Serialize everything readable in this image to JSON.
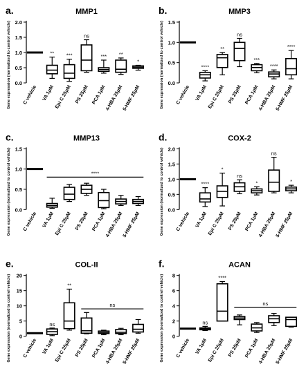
{
  "chart_data": [
    {
      "type": "box",
      "letter": "a.",
      "title": "MMP1",
      "ylabel": "Gene expression (normalized to control vehicle)",
      "ylim": [
        0,
        2.0
      ],
      "yticks": [
        0,
        0.5,
        1.0,
        1.5,
        2.0
      ],
      "ytick_labels": [
        "0.0",
        "0.5",
        "1.0",
        "1.5",
        "2.0"
      ],
      "categories": [
        "C vehicle",
        "VA 1μM",
        "Epi C 25μM",
        "PS 25μM",
        "PCA 1μM",
        "4-HBA 25μM",
        "5-HMF 25μM"
      ],
      "boxes": [
        {
          "min": 1.0,
          "q1": 1.0,
          "median": 1.0,
          "q3": 1.0,
          "max": 1.0
        },
        {
          "min": 0.15,
          "q1": 0.3,
          "median": 0.42,
          "q3": 0.58,
          "max": 0.85
        },
        {
          "min": 0.05,
          "q1": 0.15,
          "median": 0.32,
          "q3": 0.6,
          "max": 0.78
        },
        {
          "min": 0.35,
          "q1": 0.4,
          "median": 0.75,
          "q3": 1.25,
          "max": 1.42
        },
        {
          "min": 0.32,
          "q1": 0.38,
          "median": 0.44,
          "q3": 0.5,
          "max": 0.75
        },
        {
          "min": 0.28,
          "q1": 0.35,
          "median": 0.45,
          "q3": 0.75,
          "max": 0.82
        },
        {
          "min": 0.42,
          "q1": 0.48,
          "median": 0.52,
          "q3": 0.56,
          "max": 0.58
        }
      ],
      "annotations": [
        "",
        "**",
        "***",
        "ns",
        "***",
        "**",
        "*"
      ]
    },
    {
      "type": "box",
      "letter": "b.",
      "title": "MMP3",
      "ylabel": "Gene expression (normalized to control vehicle)",
      "ylim": [
        0,
        1.5
      ],
      "yticks": [
        0,
        0.5,
        1.0,
        1.5
      ],
      "ytick_labels": [
        "0.0",
        "0.5",
        "1.0",
        "1.5"
      ],
      "categories": [
        "C vehicle",
        "VA 1μM",
        "Epi C 25μM",
        "PS 25μM",
        "PCA 1μM",
        "4-HBA 25μM",
        "5-HMF 25μM"
      ],
      "boxes": [
        {
          "min": 1.0,
          "q1": 1.0,
          "median": 1.0,
          "q3": 1.0,
          "max": 1.0
        },
        {
          "min": 0.05,
          "q1": 0.12,
          "median": 0.2,
          "q3": 0.26,
          "max": 0.3
        },
        {
          "min": 0.2,
          "q1": 0.38,
          "median": 0.62,
          "q3": 0.7,
          "max": 0.75
        },
        {
          "min": 0.4,
          "q1": 0.55,
          "median": 0.85,
          "q3": 1.0,
          "max": 1.1
        },
        {
          "min": 0.25,
          "q1": 0.3,
          "median": 0.38,
          "q3": 0.45,
          "max": 0.48
        },
        {
          "min": 0.1,
          "q1": 0.15,
          "median": 0.22,
          "q3": 0.27,
          "max": 0.32
        },
        {
          "min": 0.1,
          "q1": 0.2,
          "median": 0.35,
          "q3": 0.6,
          "max": 0.8
        }
      ],
      "annotations": [
        "",
        "****",
        "**",
        "ns",
        "***",
        "****",
        "****"
      ]
    },
    {
      "type": "box",
      "letter": "c.",
      "title": "MMP13",
      "ylabel": "Gene expression (normalized to control vehicle)",
      "ylim": [
        0,
        1.5
      ],
      "yticks": [
        0,
        0.5,
        1.0,
        1.5
      ],
      "ytick_labels": [
        "0.0",
        "0.5",
        "1.0",
        "1.5"
      ],
      "categories": [
        "C vehicle",
        "VA 1μM",
        "Epi C 25μM",
        "PS 25μM",
        "PCA 1μM",
        "4-HBA 25μM",
        "5-HMF 25μM"
      ],
      "boxes": [
        {
          "min": 1.0,
          "q1": 1.0,
          "median": 1.0,
          "q3": 1.0,
          "max": 1.0
        },
        {
          "min": 0.03,
          "q1": 0.06,
          "median": 0.1,
          "q3": 0.15,
          "max": 0.28
        },
        {
          "min": 0.2,
          "q1": 0.25,
          "median": 0.38,
          "q3": 0.55,
          "max": 0.62
        },
        {
          "min": 0.35,
          "q1": 0.4,
          "median": 0.5,
          "q3": 0.6,
          "max": 0.65
        },
        {
          "min": 0.02,
          "q1": 0.05,
          "median": 0.22,
          "q3": 0.42,
          "max": 0.5
        },
        {
          "min": 0.1,
          "q1": 0.14,
          "median": 0.2,
          "q3": 0.26,
          "max": 0.35
        },
        {
          "min": 0.1,
          "q1": 0.15,
          "median": 0.2,
          "q3": 0.25,
          "max": 0.32
        }
      ],
      "annotations": [
        "",
        "",
        "",
        "",
        "",
        "",
        ""
      ],
      "bracket": {
        "from": 1,
        "to": 6,
        "y": 0.8,
        "label": "****"
      }
    },
    {
      "type": "box",
      "letter": "d.",
      "title": "COX-2",
      "ylabel": "Gene expression (normalized to control vehicle)",
      "ylim": [
        0,
        2.0
      ],
      "yticks": [
        0,
        0.5,
        1.0,
        1.5,
        2.0
      ],
      "ytick_labels": [
        "0.0",
        "0.5",
        "1.0",
        "1.5",
        "2.0"
      ],
      "categories": [
        "C vehicle",
        "VA 1μM",
        "Epi C 25μM",
        "PS 25μM",
        "PCA 1μM",
        "4-HBA 25μM",
        "5-HMF 25μM"
      ],
      "boxes": [
        {
          "min": 1.0,
          "q1": 1.0,
          "median": 1.0,
          "q3": 1.0,
          "max": 1.0
        },
        {
          "min": 0.1,
          "q1": 0.25,
          "median": 0.35,
          "q3": 0.55,
          "max": 0.72
        },
        {
          "min": 0.12,
          "q1": 0.4,
          "median": 0.6,
          "q3": 0.78,
          "max": 1.2
        },
        {
          "min": 0.52,
          "q1": 0.6,
          "median": 0.75,
          "q3": 0.88,
          "max": 0.98
        },
        {
          "min": 0.48,
          "q1": 0.55,
          "median": 0.62,
          "q3": 0.68,
          "max": 0.75
        },
        {
          "min": 0.55,
          "q1": 0.6,
          "median": 0.9,
          "q3": 1.3,
          "max": 1.72
        },
        {
          "min": 0.55,
          "q1": 0.62,
          "median": 0.68,
          "q3": 0.74,
          "max": 0.8
        }
      ],
      "annotations": [
        "",
        "****",
        "*",
        "ns",
        "*",
        "ns",
        "*"
      ]
    },
    {
      "type": "box",
      "letter": "e.",
      "title": "COL-II",
      "ylabel": "Gene expression (normalized to control vehicle)",
      "ylim": [
        0,
        20
      ],
      "yticks": [
        0,
        5,
        10,
        15,
        20
      ],
      "ytick_labels": [
        "0",
        "5",
        "10",
        "15",
        "20"
      ],
      "categories": [
        "C vehicle",
        "VA 1μM",
        "Epi C 25μM",
        "PS 25μM",
        "PCA 1μM",
        "4-HBA 25μM",
        "5-HMF 25μM"
      ],
      "boxes": [
        {
          "min": 1.0,
          "q1": 1.0,
          "median": 1.0,
          "q3": 1.0,
          "max": 1.0
        },
        {
          "min": 0.2,
          "q1": 0.6,
          "median": 1.5,
          "q3": 2.4,
          "max": 2.7
        },
        {
          "min": 2.0,
          "q1": 2.5,
          "median": 5.0,
          "q3": 11.0,
          "max": 15.5
        },
        {
          "min": 0.8,
          "q1": 1.0,
          "median": 1.8,
          "q3": 6.0,
          "max": 7.8
        },
        {
          "min": 0.5,
          "q1": 0.9,
          "median": 1.2,
          "q3": 1.7,
          "max": 2.0
        },
        {
          "min": 0.5,
          "q1": 0.9,
          "median": 1.3,
          "q3": 2.2,
          "max": 2.6
        },
        {
          "min": 1.0,
          "q1": 1.4,
          "median": 2.3,
          "q3": 3.9,
          "max": 5.5
        }
      ],
      "annotations": [
        "",
        "ns",
        "**",
        "",
        "",
        "",
        ""
      ],
      "bracket": {
        "from": 3,
        "to": 6,
        "y": 9.0,
        "label": "ns"
      }
    },
    {
      "type": "box",
      "letter": "f.",
      "title": "ACAN",
      "ylabel": "Gene expression (normalized to control vehicle)",
      "ylim": [
        0,
        8
      ],
      "yticks": [
        0,
        2,
        4,
        6,
        8
      ],
      "ytick_labels": [
        "0",
        "2",
        "4",
        "6",
        "8"
      ],
      "categories": [
        "C vehicle",
        "VA 1μM",
        "Epi C 25μM",
        "PS 25μM",
        "PCA 1μM",
        "4-HBA 25μM",
        "5-HMF 25μM"
      ],
      "boxes": [
        {
          "min": 1.0,
          "q1": 1.0,
          "median": 1.0,
          "q3": 1.0,
          "max": 1.0
        },
        {
          "min": 0.75,
          "q1": 0.85,
          "median": 1.0,
          "q3": 1.1,
          "max": 1.3
        },
        {
          "min": 2.0,
          "q1": 2.0,
          "median": 3.3,
          "q3": 6.9,
          "max": 7.2
        },
        {
          "min": 1.5,
          "q1": 2.2,
          "median": 2.4,
          "q3": 2.6,
          "max": 2.8
        },
        {
          "min": 0.5,
          "q1": 0.7,
          "median": 1.1,
          "q3": 1.6,
          "max": 1.8
        },
        {
          "min": 1.4,
          "q1": 1.8,
          "median": 2.3,
          "q3": 2.7,
          "max": 3.0
        },
        {
          "min": 1.2,
          "q1": 1.3,
          "median": 2.2,
          "q3": 2.5,
          "max": 2.5
        }
      ],
      "annotations": [
        "",
        "ns",
        "****",
        "",
        "",
        "",
        ""
      ],
      "bracket": {
        "from": 3,
        "to": 6,
        "y": 3.8,
        "label": "ns"
      }
    }
  ]
}
